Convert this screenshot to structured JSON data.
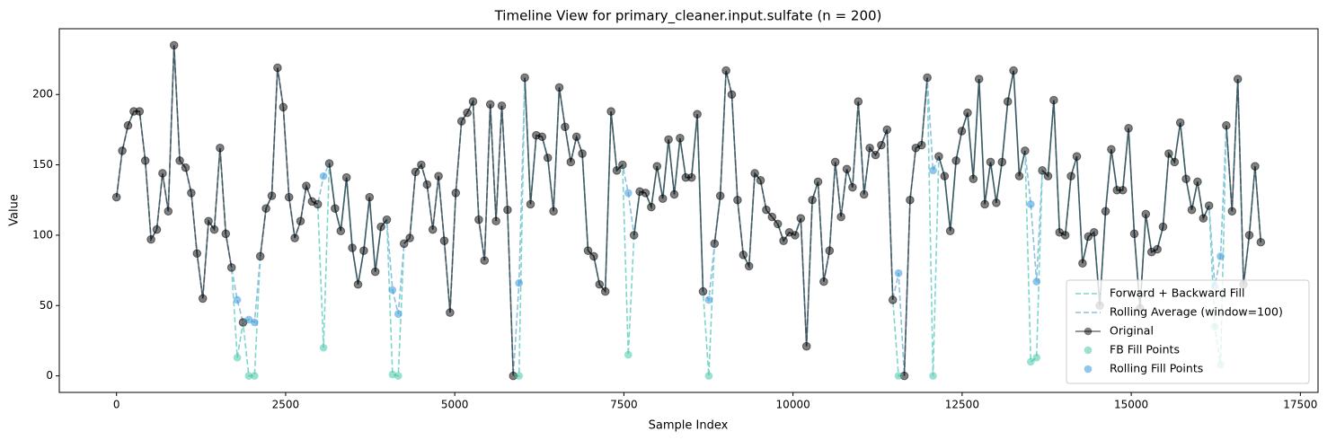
{
  "chart_data": {
    "type": "line",
    "title": "Timeline View for primary_cleaner.input.sulfate (n = 200)",
    "x_label": "Sample Index",
    "y_label": "Value",
    "xlim": [
      -846,
      17761
    ],
    "ylim": [
      -11.75,
      246.75
    ],
    "xticks": [
      0,
      2500,
      5000,
      7500,
      10000,
      12500,
      15000,
      17500
    ],
    "yticks": [
      0,
      50,
      100,
      150,
      200
    ],
    "grid": false,
    "legend": "lower right",
    "x": [
      0,
      85,
      170,
      255,
      340,
      425,
      510,
      595,
      680,
      765,
      850,
      935,
      1020,
      1105,
      1190,
      1275,
      1360,
      1445,
      1530,
      1615,
      1700,
      1785,
      1870,
      1955,
      2040,
      2125,
      2210,
      2295,
      2380,
      2465,
      2550,
      2635,
      2720,
      2805,
      2890,
      2975,
      3060,
      3145,
      3230,
      3315,
      3400,
      3485,
      3570,
      3655,
      3740,
      3825,
      3910,
      3995,
      4080,
      4165,
      4250,
      4335,
      4420,
      4505,
      4590,
      4675,
      4760,
      4845,
      4930,
      5015,
      5100,
      5185,
      5270,
      5355,
      5440,
      5525,
      5610,
      5695,
      5780,
      5865,
      5950,
      6035,
      6120,
      6205,
      6290,
      6375,
      6460,
      6545,
      6630,
      6715,
      6800,
      6885,
      6970,
      7055,
      7140,
      7225,
      7310,
      7395,
      7480,
      7565,
      7650,
      7735,
      7820,
      7905,
      7990,
      8075,
      8160,
      8245,
      8330,
      8415,
      8500,
      8585,
      8670,
      8755,
      8840,
      8925,
      9010,
      9095,
      9180,
      9265,
      9350,
      9435,
      9520,
      9605,
      9690,
      9775,
      9860,
      9945,
      10030,
      10115,
      10200,
      10285,
      10370,
      10455,
      10540,
      10625,
      10710,
      10795,
      10880,
      10965,
      11050,
      11135,
      11220,
      11305,
      11390,
      11475,
      11560,
      11645,
      11730,
      11815,
      11900,
      11985,
      12070,
      12155,
      12240,
      12325,
      12410,
      12495,
      12580,
      12665,
      12750,
      12835,
      12920,
      13005,
      13090,
      13175,
      13260,
      13345,
      13430,
      13515,
      13600,
      13685,
      13770,
      13855,
      13940,
      14025,
      14110,
      14195,
      14280,
      14365,
      14450,
      14535,
      14620,
      14705,
      14790,
      14875,
      14960,
      15045,
      15130,
      15215,
      15300,
      15385,
      15470,
      15555,
      15640,
      15725,
      15810,
      15895,
      15980,
      16065,
      16150,
      16235,
      16320,
      16405,
      16490,
      16575,
      16660,
      16745,
      16830,
      16915
    ],
    "series": [
      {
        "name": "Forward + Backward Fill",
        "color": "#7fd6cc",
        "linestyle": "dashed",
        "kind": "line",
        "values": [
          127,
          160,
          178,
          188,
          188,
          153,
          97,
          104,
          144,
          117,
          235,
          153,
          148,
          130,
          87,
          55,
          110,
          104,
          162,
          101,
          77,
          13,
          38,
          0,
          0,
          85,
          119,
          128,
          219,
          191,
          127,
          98,
          110,
          135,
          124,
          122,
          20,
          151,
          119,
          103,
          141,
          91,
          65,
          89,
          127,
          74,
          106,
          111,
          1,
          0,
          94,
          98,
          145,
          150,
          136,
          104,
          142,
          96,
          45,
          130,
          181,
          187,
          195,
          111,
          82,
          193,
          110,
          192,
          118,
          0,
          0,
          212,
          122,
          171,
          170,
          155,
          117,
          205,
          177,
          152,
          170,
          158,
          89,
          85,
          65,
          60,
          188,
          146,
          150,
          15,
          100,
          131,
          130,
          120,
          149,
          126,
          168,
          129,
          169,
          141,
          141,
          186,
          60,
          0,
          94,
          128,
          217,
          200,
          125,
          86,
          78,
          144,
          139,
          118,
          113,
          108,
          96,
          102,
          100,
          112,
          21,
          125,
          138,
          67,
          89,
          152,
          113,
          147,
          134,
          195,
          129,
          162,
          157,
          164,
          175,
          54,
          0,
          0,
          125,
          162,
          164,
          212,
          0,
          156,
          142,
          103,
          153,
          174,
          187,
          140,
          211,
          122,
          152,
          123,
          152,
          195,
          217,
          142,
          160,
          10,
          13,
          146,
          142,
          196,
          102,
          100,
          142,
          156,
          80,
          99,
          102,
          50,
          117,
          161,
          132,
          132,
          176,
          101,
          48,
          115,
          88,
          90,
          106,
          158,
          152,
          180,
          140,
          118,
          138,
          112,
          121,
          35,
          8,
          178,
          117,
          211,
          65,
          100,
          149,
          95
        ]
      },
      {
        "name": "Rolling Average (window=100)",
        "color": "#8ec1e0",
        "linestyle": "dashed",
        "kind": "line",
        "values": [
          127,
          160,
          178,
          188,
          188,
          153,
          97,
          104,
          144,
          117,
          235,
          153,
          148,
          130,
          87,
          55,
          110,
          104,
          162,
          101,
          77,
          54,
          38,
          40,
          38,
          85,
          119,
          128,
          219,
          191,
          127,
          98,
          110,
          135,
          124,
          122,
          142,
          151,
          119,
          103,
          141,
          91,
          65,
          89,
          127,
          74,
          106,
          111,
          61,
          44,
          94,
          98,
          145,
          150,
          136,
          104,
          142,
          96,
          45,
          130,
          181,
          187,
          195,
          111,
          82,
          193,
          110,
          192,
          118,
          0,
          66,
          212,
          122,
          171,
          170,
          155,
          117,
          205,
          177,
          152,
          170,
          158,
          89,
          85,
          65,
          60,
          188,
          146,
          150,
          130,
          100,
          131,
          130,
          120,
          149,
          126,
          168,
          129,
          169,
          141,
          141,
          186,
          60,
          54,
          94,
          128,
          217,
          200,
          125,
          86,
          78,
          144,
          139,
          118,
          113,
          108,
          96,
          102,
          100,
          112,
          21,
          125,
          138,
          67,
          89,
          152,
          113,
          147,
          134,
          195,
          129,
          162,
          157,
          164,
          175,
          54,
          73,
          0,
          125,
          162,
          164,
          212,
          146,
          156,
          142,
          103,
          153,
          174,
          187,
          140,
          211,
          122,
          152,
          123,
          152,
          195,
          217,
          142,
          160,
          122,
          67,
          146,
          142,
          196,
          102,
          100,
          142,
          156,
          80,
          99,
          102,
          50,
          117,
          161,
          132,
          132,
          176,
          101,
          48,
          115,
          88,
          90,
          106,
          158,
          152,
          180,
          140,
          118,
          138,
          112,
          121,
          64,
          85,
          178,
          117,
          211,
          65,
          100,
          149,
          95
        ]
      },
      {
        "name": "Original",
        "color": "#000000",
        "linestyle": "solid",
        "marker": "o",
        "kind": "line",
        "values": [
          127,
          160,
          178,
          188,
          188,
          153,
          97,
          104,
          144,
          117,
          235,
          153,
          148,
          130,
          87,
          55,
          110,
          104,
          162,
          101,
          77,
          null,
          38,
          null,
          null,
          85,
          119,
          128,
          219,
          191,
          127,
          98,
          110,
          135,
          124,
          122,
          null,
          151,
          119,
          103,
          141,
          91,
          65,
          89,
          127,
          74,
          106,
          111,
          null,
          null,
          94,
          98,
          145,
          150,
          136,
          104,
          142,
          96,
          45,
          130,
          181,
          187,
          195,
          111,
          82,
          193,
          110,
          192,
          118,
          0,
          null,
          212,
          122,
          171,
          170,
          155,
          117,
          205,
          177,
          152,
          170,
          158,
          89,
          85,
          65,
          60,
          188,
          146,
          150,
          null,
          100,
          131,
          130,
          120,
          149,
          126,
          168,
          129,
          169,
          141,
          141,
          186,
          60,
          null,
          94,
          128,
          217,
          200,
          125,
          86,
          78,
          144,
          139,
          118,
          113,
          108,
          96,
          102,
          100,
          112,
          21,
          125,
          138,
          67,
          89,
          152,
          113,
          147,
          134,
          195,
          129,
          162,
          157,
          164,
          175,
          54,
          null,
          0,
          125,
          162,
          164,
          212,
          null,
          156,
          142,
          103,
          153,
          174,
          187,
          140,
          211,
          122,
          152,
          123,
          152,
          195,
          217,
          142,
          160,
          null,
          null,
          146,
          142,
          196,
          102,
          100,
          142,
          156,
          80,
          99,
          102,
          50,
          117,
          161,
          132,
          132,
          176,
          101,
          48,
          115,
          88,
          90,
          106,
          158,
          152,
          180,
          140,
          118,
          138,
          112,
          121,
          null,
          null,
          178,
          117,
          211,
          65,
          100,
          149,
          95
        ]
      },
      {
        "name": "FB Fill Points",
        "color": "#48c9a9",
        "kind": "scatter",
        "x": [
          1785,
          1955,
          2040,
          3060,
          4080,
          4165,
          5950,
          7565,
          8755,
          11560,
          12070,
          13515,
          13600,
          16235,
          16320
        ],
        "values": [
          13,
          0,
          0,
          20,
          1,
          0,
          0,
          15,
          0,
          0,
          0,
          10,
          13,
          35,
          8
        ]
      },
      {
        "name": "Rolling Fill Points",
        "color": "#3498db",
        "kind": "scatter",
        "x": [
          1785,
          1955,
          2040,
          3060,
          4080,
          4165,
          5950,
          7565,
          8755,
          11560,
          12070,
          13515,
          13600,
          16235,
          16320
        ],
        "values": [
          54,
          40,
          38,
          142,
          61,
          44,
          66,
          130,
          54,
          73,
          146,
          122,
          67,
          64,
          85
        ]
      }
    ]
  }
}
